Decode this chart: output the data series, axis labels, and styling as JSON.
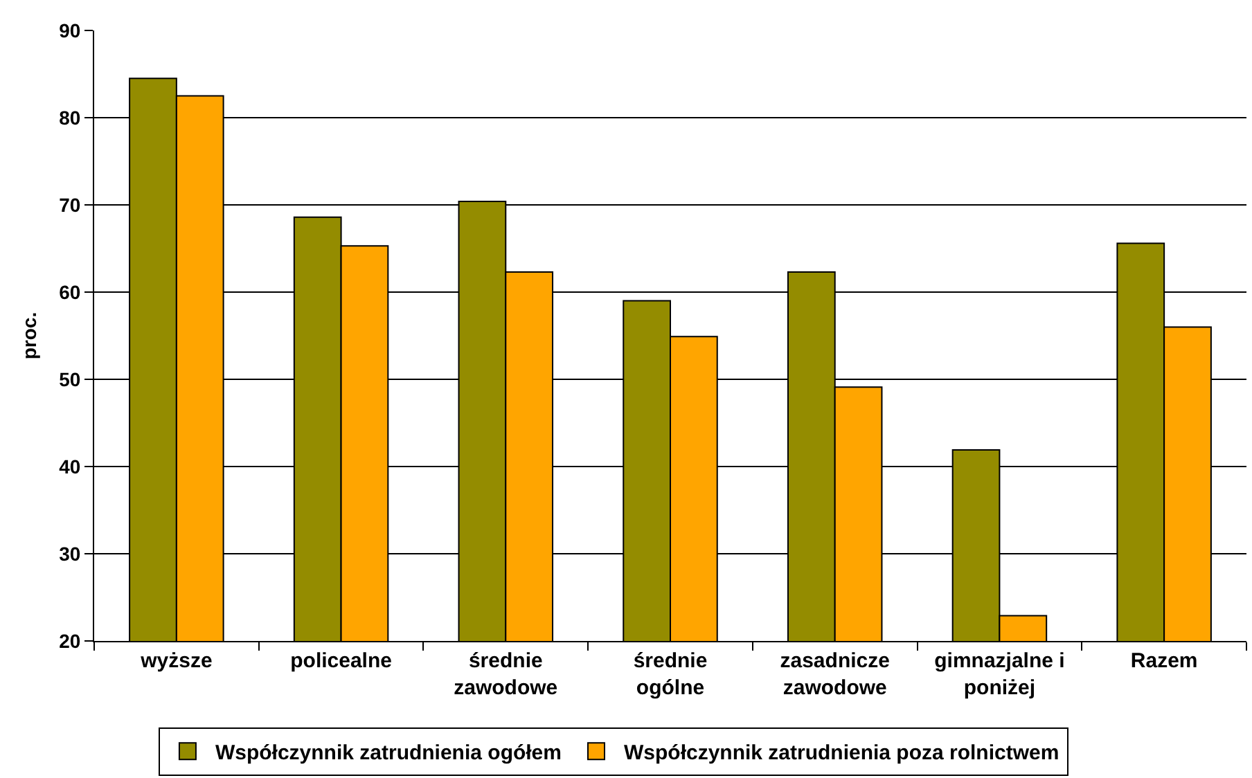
{
  "chart_data": {
    "type": "bar",
    "categories": [
      "wyższe",
      "policealne",
      "średnie zawodowe",
      "średnie ogólne",
      "zasadnicze zawodowe",
      "gimnazjalne i poniżej",
      "Razem"
    ],
    "series": [
      {
        "name": "Współczynnik zatrudnienia ogółem",
        "color": "#948c00",
        "values": [
          84.5,
          68.6,
          70.4,
          59.0,
          62.3,
          41.9,
          65.6
        ]
      },
      {
        "name": "Współczynnik zatrudnienia poza rolnictwem",
        "color": "#ffa500",
        "values": [
          82.5,
          65.3,
          62.3,
          54.9,
          49.1,
          22.9,
          56.0
        ]
      }
    ],
    "ylabel": "proc.",
    "ylim": [
      20,
      90
    ],
    "yticks": [
      20,
      30,
      40,
      50,
      60,
      70,
      80,
      90
    ],
    "grid": "y",
    "legend": "bottom"
  }
}
